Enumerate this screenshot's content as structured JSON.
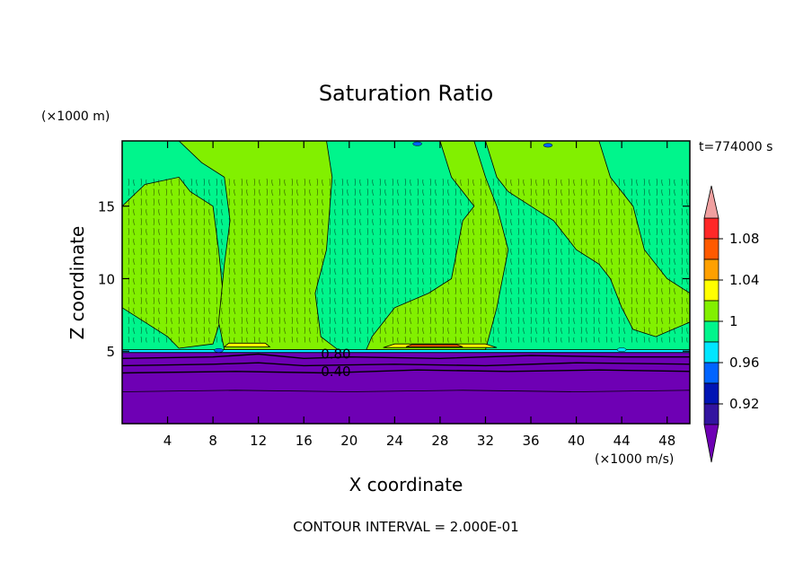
{
  "chart_data": {
    "type": "heatmap",
    "title": "Saturation Ratio",
    "xlabel": "X coordinate",
    "ylabel": "Z coordinate",
    "x_unit": "(×1000 m/s)",
    "y_unit": "(×1000 m)",
    "time_label": "t=774000 s",
    "footer": "CONTOUR INTERVAL = 2.000E-01",
    "xlim": [
      0,
      50
    ],
    "ylim": [
      0,
      19.5
    ],
    "x_ticks": [
      4,
      8,
      12,
      16,
      20,
      24,
      28,
      32,
      36,
      40,
      44,
      48
    ],
    "y_ticks": [
      5,
      10,
      15
    ],
    "contour_labels": [
      {
        "text": "0.80",
        "x": 17.5,
        "y": 4.8
      },
      {
        "text": "0.40",
        "x": 17.5,
        "y": 3.6
      }
    ],
    "colorbar": {
      "labels": [
        "1.08",
        "1.04",
        "1",
        "0.96",
        "0.92"
      ],
      "bins": [
        {
          "lo": null,
          "hi": 0.9,
          "color": "#6e00b4"
        },
        {
          "lo": 0.9,
          "hi": 0.92,
          "color": "#3214a0"
        },
        {
          "lo": 0.92,
          "hi": 0.94,
          "color": "#0014b4"
        },
        {
          "lo": 0.94,
          "hi": 0.96,
          "color": "#0064ff"
        },
        {
          "lo": 0.96,
          "hi": 0.98,
          "color": "#00e6ff"
        },
        {
          "lo": 0.98,
          "hi": 1.0,
          "color": "#00f58c"
        },
        {
          "lo": 1.0,
          "hi": 1.02,
          "color": "#82f000"
        },
        {
          "lo": 1.02,
          "hi": 1.04,
          "color": "#ffff00"
        },
        {
          "lo": 1.04,
          "hi": 1.06,
          "color": "#ffa000"
        },
        {
          "lo": 1.06,
          "hi": 1.08,
          "color": "#ff5a00"
        },
        {
          "lo": 1.08,
          "hi": 1.1,
          "color": "#ff2828"
        },
        {
          "lo": 1.1,
          "hi": null,
          "color": "#f0a0a0"
        }
      ]
    },
    "regions": [
      {
        "level": 1.0,
        "color": "#82f000",
        "polygon": [
          [
            0,
            15
          ],
          [
            2,
            16.5
          ],
          [
            5,
            17
          ],
          [
            6,
            16
          ],
          [
            8,
            15
          ],
          [
            8.5,
            12
          ],
          [
            9,
            8
          ],
          [
            8,
            5.5
          ],
          [
            5,
            5.2
          ],
          [
            4,
            6
          ],
          [
            2,
            7
          ],
          [
            0,
            8
          ]
        ]
      },
      {
        "level": 1.0,
        "color": "#82f000",
        "polygon": [
          [
            5,
            19.5
          ],
          [
            18,
            19.5
          ],
          [
            18.5,
            17
          ],
          [
            18,
            12
          ],
          [
            17,
            9
          ],
          [
            17.5,
            6
          ],
          [
            19,
            5.1
          ],
          [
            9,
            5.1
          ],
          [
            8.5,
            7
          ],
          [
            9,
            11
          ],
          [
            9.5,
            14
          ],
          [
            9,
            17
          ],
          [
            7,
            18
          ]
        ]
      },
      {
        "level": 1.0,
        "color": "#82f000",
        "polygon": [
          [
            22,
            19.5
          ],
          [
            28,
            19.5
          ],
          [
            29,
            17
          ],
          [
            31,
            15
          ],
          [
            30,
            14
          ],
          [
            29,
            10
          ],
          [
            27,
            9
          ],
          [
            24,
            8
          ],
          [
            22,
            6
          ],
          [
            21.5,
            5.1
          ],
          [
            32,
            5.1
          ],
          [
            33,
            8
          ],
          [
            34,
            12
          ],
          [
            33,
            15
          ],
          [
            32,
            17
          ],
          [
            31,
            19.5
          ]
        ]
      },
      {
        "level": 1.0,
        "color": "#82f000",
        "polygon": [
          [
            32,
            19.5
          ],
          [
            42,
            19.5
          ],
          [
            43,
            17
          ],
          [
            45,
            15
          ],
          [
            46,
            12
          ],
          [
            48,
            10
          ],
          [
            50,
            9
          ],
          [
            50,
            7
          ],
          [
            47,
            6
          ],
          [
            45,
            6.5
          ],
          [
            44,
            8
          ],
          [
            43,
            10
          ],
          [
            42,
            11
          ],
          [
            40,
            12
          ],
          [
            38,
            14
          ],
          [
            36,
            15
          ],
          [
            34,
            16
          ],
          [
            33,
            17
          ]
        ]
      },
      {
        "level": 1.04,
        "color": "#ffff00",
        "polygon": [
          [
            9,
            5.3
          ],
          [
            13,
            5.3
          ],
          [
            12.6,
            5.55
          ],
          [
            9.4,
            5.55
          ]
        ]
      },
      {
        "level": 1.04,
        "color": "#ffff00",
        "polygon": [
          [
            23,
            5.25
          ],
          [
            33,
            5.25
          ],
          [
            32,
            5.5
          ],
          [
            24,
            5.5
          ]
        ]
      },
      {
        "level": 1.06,
        "color": "#ff5a00",
        "polygon": [
          [
            25,
            5.3
          ],
          [
            30,
            5.3
          ],
          [
            29.5,
            5.45
          ],
          [
            25.5,
            5.45
          ]
        ]
      },
      {
        "level": 0.96,
        "color": "#00e6ff",
        "polygon": [
          [
            0,
            5.1
          ],
          [
            50,
            5.1
          ],
          [
            50,
            4.9
          ],
          [
            0,
            4.9
          ]
        ]
      },
      {
        "level": 0.9,
        "color": "#6e00b4",
        "polygon": [
          [
            0,
            0
          ],
          [
            50,
            0
          ],
          [
            50,
            4.9
          ],
          [
            0,
            4.9
          ]
        ]
      }
    ],
    "contour_lines": [
      {
        "level": 0.8,
        "points": [
          [
            0,
            4.5
          ],
          [
            8,
            4.6
          ],
          [
            12,
            4.8
          ],
          [
            16,
            4.5
          ],
          [
            20,
            4.6
          ],
          [
            28,
            4.5
          ],
          [
            36,
            4.7
          ],
          [
            44,
            4.6
          ],
          [
            50,
            4.6
          ]
        ]
      },
      {
        "level": 0.6,
        "points": [
          [
            0,
            4.0
          ],
          [
            8,
            4.1
          ],
          [
            12,
            4.2
          ],
          [
            16,
            4.0
          ],
          [
            24,
            4.1
          ],
          [
            32,
            4.0
          ],
          [
            40,
            4.2
          ],
          [
            50,
            4.1
          ]
        ]
      },
      {
        "level": 0.4,
        "points": [
          [
            0,
            3.5
          ],
          [
            10,
            3.6
          ],
          [
            18,
            3.5
          ],
          [
            26,
            3.7
          ],
          [
            34,
            3.6
          ],
          [
            42,
            3.7
          ],
          [
            50,
            3.6
          ]
        ]
      },
      {
        "level": 0.2,
        "points": [
          [
            0,
            2.2
          ],
          [
            10,
            2.3
          ],
          [
            20,
            2.2
          ],
          [
            30,
            2.3
          ],
          [
            40,
            2.2
          ],
          [
            50,
            2.3
          ]
        ]
      }
    ],
    "small_blobs": [
      {
        "x": 26,
        "y": 19.3,
        "color": "#0064ff"
      },
      {
        "x": 37.5,
        "y": 19.2,
        "color": "#0064ff"
      },
      {
        "x": 8.5,
        "y": 5.05,
        "color": "#0064ff"
      },
      {
        "x": 44,
        "y": 5.1,
        "color": "#00e6ff"
      }
    ]
  }
}
